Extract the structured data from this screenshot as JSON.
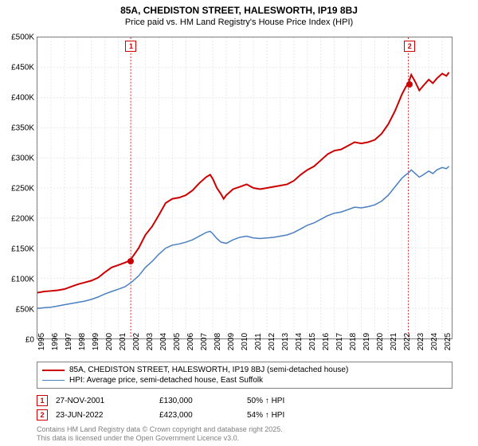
{
  "title_line1": "85A, CHEDISTON STREET, HALESWORTH, IP19 8BJ",
  "title_line2": "Price paid vs. HM Land Registry's House Price Index (HPI)",
  "chart": {
    "type": "line",
    "background_color": "#ffffff",
    "border_color": "#808080",
    "grid_color": "#e8e8e8",
    "grid_dash": "2,2",
    "ylim": [
      0,
      500000
    ],
    "ytick_step": 50000,
    "yticks": [
      0,
      50000,
      100000,
      150000,
      200000,
      250000,
      300000,
      350000,
      400000,
      450000,
      500000
    ],
    "ytick_labels": [
      "£0",
      "£50K",
      "£100K",
      "£150K",
      "£200K",
      "£250K",
      "£300K",
      "£350K",
      "£400K",
      "£450K",
      "£500K"
    ],
    "xlim": [
      1995,
      2025.7
    ],
    "xticks": [
      1995,
      1996,
      1997,
      1998,
      1999,
      2000,
      2001,
      2002,
      2003,
      2004,
      2005,
      2006,
      2007,
      2008,
      2009,
      2010,
      2011,
      2012,
      2013,
      2014,
      2015,
      2016,
      2017,
      2018,
      2019,
      2020,
      2021,
      2022,
      2023,
      2024,
      2025
    ],
    "series": [
      {
        "name": "property",
        "label": "85A, CHEDISTON STREET, HALESWORTH, IP19 8BJ (semi-detached house)",
        "color": "#cc0000",
        "width": 2,
        "data": [
          [
            1995,
            76000
          ],
          [
            1995.5,
            78000
          ],
          [
            1996,
            79000
          ],
          [
            1996.5,
            80000
          ],
          [
            1997,
            82000
          ],
          [
            1997.5,
            86000
          ],
          [
            1998,
            90000
          ],
          [
            1998.5,
            93000
          ],
          [
            1999,
            96000
          ],
          [
            1999.5,
            101000
          ],
          [
            2000,
            110000
          ],
          [
            2000.5,
            118000
          ],
          [
            2001,
            122000
          ],
          [
            2001.5,
            126000
          ],
          [
            2001.91,
            130000
          ],
          [
            2002,
            134000
          ],
          [
            2002.5,
            150000
          ],
          [
            2003,
            172000
          ],
          [
            2003.5,
            186000
          ],
          [
            2004,
            205000
          ],
          [
            2004.5,
            225000
          ],
          [
            2005,
            232000
          ],
          [
            2005.5,
            234000
          ],
          [
            2006,
            238000
          ],
          [
            2006.5,
            246000
          ],
          [
            2007,
            258000
          ],
          [
            2007.5,
            268000
          ],
          [
            2007.8,
            272000
          ],
          [
            2008,
            265000
          ],
          [
            2008.3,
            250000
          ],
          [
            2008.6,
            240000
          ],
          [
            2008.8,
            232000
          ],
          [
            2009,
            238000
          ],
          [
            2009.5,
            248000
          ],
          [
            2010,
            252000
          ],
          [
            2010.5,
            256000
          ],
          [
            2011,
            250000
          ],
          [
            2011.5,
            248000
          ],
          [
            2012,
            250000
          ],
          [
            2012.5,
            252000
          ],
          [
            2013,
            254000
          ],
          [
            2013.5,
            256000
          ],
          [
            2014,
            262000
          ],
          [
            2014.5,
            272000
          ],
          [
            2015,
            280000
          ],
          [
            2015.5,
            286000
          ],
          [
            2016,
            296000
          ],
          [
            2016.5,
            306000
          ],
          [
            2017,
            312000
          ],
          [
            2017.5,
            314000
          ],
          [
            2018,
            320000
          ],
          [
            2018.5,
            326000
          ],
          [
            2019,
            324000
          ],
          [
            2019.5,
            326000
          ],
          [
            2020,
            330000
          ],
          [
            2020.5,
            340000
          ],
          [
            2021,
            356000
          ],
          [
            2021.5,
            378000
          ],
          [
            2022,
            405000
          ],
          [
            2022.3,
            418000
          ],
          [
            2022.48,
            423000
          ],
          [
            2022.7,
            438000
          ],
          [
            2023,
            426000
          ],
          [
            2023.3,
            412000
          ],
          [
            2023.6,
            420000
          ],
          [
            2024,
            430000
          ],
          [
            2024.3,
            424000
          ],
          [
            2024.6,
            432000
          ],
          [
            2025,
            440000
          ],
          [
            2025.3,
            436000
          ],
          [
            2025.5,
            442000
          ]
        ]
      },
      {
        "name": "hpi",
        "label": "HPI: Average price, semi-detached house, East Suffolk",
        "color": "#4a7fc0",
        "width": 1.5,
        "data": [
          [
            1995,
            50000
          ],
          [
            1995.5,
            51000
          ],
          [
            1996,
            52000
          ],
          [
            1996.5,
            54000
          ],
          [
            1997,
            56000
          ],
          [
            1997.5,
            58000
          ],
          [
            1998,
            60000
          ],
          [
            1998.5,
            62000
          ],
          [
            1999,
            65000
          ],
          [
            1999.5,
            69000
          ],
          [
            2000,
            74000
          ],
          [
            2000.5,
            78000
          ],
          [
            2001,
            82000
          ],
          [
            2001.5,
            86000
          ],
          [
            2002,
            94000
          ],
          [
            2002.5,
            104000
          ],
          [
            2003,
            118000
          ],
          [
            2003.5,
            128000
          ],
          [
            2004,
            140000
          ],
          [
            2004.5,
            150000
          ],
          [
            2005,
            155000
          ],
          [
            2005.5,
            157000
          ],
          [
            2006,
            160000
          ],
          [
            2006.5,
            164000
          ],
          [
            2007,
            170000
          ],
          [
            2007.5,
            176000
          ],
          [
            2007.8,
            178000
          ],
          [
            2008,
            174000
          ],
          [
            2008.3,
            166000
          ],
          [
            2008.6,
            160000
          ],
          [
            2009,
            158000
          ],
          [
            2009.5,
            164000
          ],
          [
            2010,
            168000
          ],
          [
            2010.5,
            170000
          ],
          [
            2011,
            167000
          ],
          [
            2011.5,
            166000
          ],
          [
            2012,
            167000
          ],
          [
            2012.5,
            168000
          ],
          [
            2013,
            170000
          ],
          [
            2013.5,
            172000
          ],
          [
            2014,
            176000
          ],
          [
            2014.5,
            182000
          ],
          [
            2015,
            188000
          ],
          [
            2015.5,
            192000
          ],
          [
            2016,
            198000
          ],
          [
            2016.5,
            204000
          ],
          [
            2017,
            208000
          ],
          [
            2017.5,
            210000
          ],
          [
            2018,
            214000
          ],
          [
            2018.5,
            218000
          ],
          [
            2019,
            217000
          ],
          [
            2019.5,
            219000
          ],
          [
            2020,
            222000
          ],
          [
            2020.5,
            228000
          ],
          [
            2021,
            238000
          ],
          [
            2021.5,
            252000
          ],
          [
            2022,
            266000
          ],
          [
            2022.3,
            272000
          ],
          [
            2022.5,
            275000
          ],
          [
            2022.7,
            280000
          ],
          [
            2023,
            274000
          ],
          [
            2023.3,
            268000
          ],
          [
            2023.6,
            272000
          ],
          [
            2024,
            278000
          ],
          [
            2024.3,
            274000
          ],
          [
            2024.6,
            280000
          ],
          [
            2025,
            284000
          ],
          [
            2025.3,
            282000
          ],
          [
            2025.5,
            286000
          ]
        ]
      }
    ],
    "sale_markers": [
      {
        "n": "1",
        "x": 2001.91,
        "y": 130000
      },
      {
        "n": "2",
        "x": 2022.48,
        "y": 423000
      }
    ],
    "sale_marker_line_color": "#cc0000",
    "sale_marker_line_dash": "2,2",
    "label_fontsize": 10
  },
  "legend": {
    "rows": [
      {
        "color": "#cc0000",
        "width": 2,
        "label": "85A, CHEDISTON STREET, HALESWORTH, IP19 8BJ (semi-detached house)"
      },
      {
        "color": "#4a7fc0",
        "width": 1.5,
        "label": "HPI: Average price, semi-detached house, East Suffolk"
      }
    ]
  },
  "sales": [
    {
      "n": "1",
      "date": "27-NOV-2001",
      "price": "£130,000",
      "delta": "50% ↑ HPI"
    },
    {
      "n": "2",
      "date": "23-JUN-2022",
      "price": "£423,000",
      "delta": "54% ↑ HPI"
    }
  ],
  "footnote_line1": "Contains HM Land Registry data © Crown copyright and database right 2025.",
  "footnote_line2": "This data is licensed under the Open Government Licence v3.0."
}
